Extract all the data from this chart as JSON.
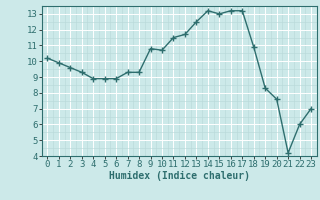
{
  "x": [
    0,
    1,
    2,
    3,
    4,
    5,
    6,
    7,
    8,
    9,
    10,
    11,
    12,
    13,
    14,
    15,
    16,
    17,
    18,
    19,
    20,
    21,
    22,
    23
  ],
  "y": [
    10.2,
    9.9,
    9.6,
    9.3,
    8.9,
    8.9,
    8.9,
    9.3,
    9.3,
    10.8,
    10.7,
    11.5,
    11.7,
    12.5,
    13.2,
    13.0,
    13.2,
    13.2,
    10.9,
    8.3,
    7.6,
    4.2,
    6.0,
    7.0
  ],
  "line_color": "#2e6e6e",
  "marker": "+",
  "marker_size": 4,
  "bg_color": "#cce9e9",
  "grid_color_major": "#ffffff",
  "grid_color_minor": "#b8d8d8",
  "xlabel": "Humidex (Indice chaleur)",
  "ylim": [
    4,
    13.5
  ],
  "xlim": [
    -0.5,
    23.5
  ],
  "yticks": [
    4,
    5,
    6,
    7,
    8,
    9,
    10,
    11,
    12,
    13
  ],
  "xticks": [
    0,
    1,
    2,
    3,
    4,
    5,
    6,
    7,
    8,
    9,
    10,
    11,
    12,
    13,
    14,
    15,
    16,
    17,
    18,
    19,
    20,
    21,
    22,
    23
  ],
  "xlabel_fontsize": 7,
  "tick_fontsize": 6.5,
  "line_width": 1.0
}
